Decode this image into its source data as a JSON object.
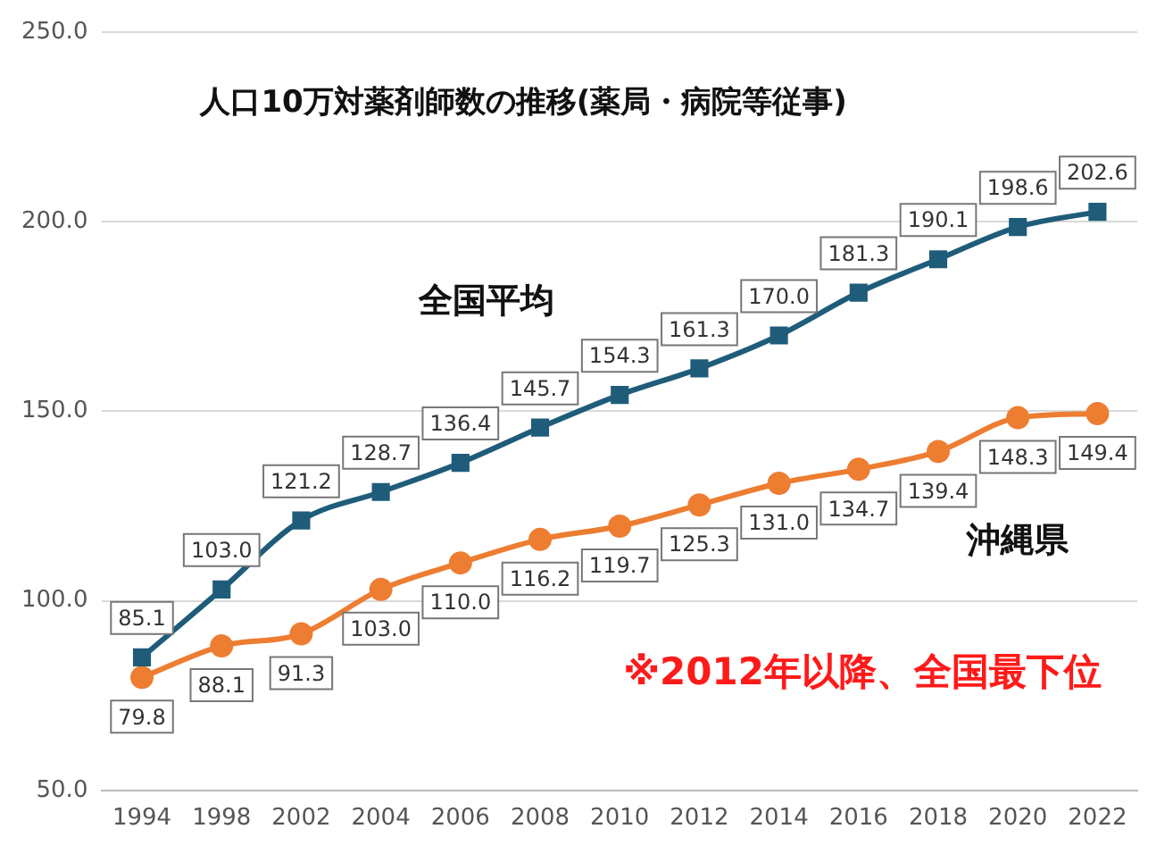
{
  "chart_data": {
    "type": "line",
    "title": "人口10万対薬剤師数の推移(薬局・病院等従事)",
    "categories": [
      "1994",
      "1998",
      "2002",
      "2004",
      "2006",
      "2008",
      "2010",
      "2012",
      "2014",
      "2016",
      "2018",
      "2020",
      "2022"
    ],
    "series": [
      {
        "name": "全国平均",
        "color": "#1f5c7a",
        "marker": "square",
        "values": [
          85.1,
          103.0,
          121.2,
          128.7,
          136.4,
          145.7,
          154.3,
          161.3,
          170.0,
          181.3,
          190.1,
          198.6,
          202.6
        ],
        "value_labels": [
          "85.1",
          "103.0",
          "121.2",
          "128.7",
          "136.4",
          "145.7",
          "154.3",
          "161.3",
          "170.0",
          "181.3",
          "190.1",
          "198.6",
          "202.6"
        ]
      },
      {
        "name": "沖縄県",
        "color": "#ed7d31",
        "marker": "circle",
        "values": [
          79.8,
          88.1,
          91.3,
          103.0,
          110.0,
          116.2,
          119.7,
          125.3,
          131.0,
          134.7,
          139.4,
          148.3,
          149.4
        ],
        "value_labels": [
          "79.8",
          "88.1",
          "91.3",
          "103.0",
          "110.0",
          "116.2",
          "119.7",
          "125.3",
          "131.0",
          "134.7",
          "139.4",
          "148.3",
          "149.4"
        ]
      }
    ],
    "ylim": [
      50,
      250
    ],
    "yticks": [
      {
        "value": 50,
        "label": "50.0"
      },
      {
        "value": 100,
        "label": "100.0"
      },
      {
        "value": 150,
        "label": "150.0"
      },
      {
        "value": 200,
        "label": "200.0"
      },
      {
        "value": 250,
        "label": "250.0"
      }
    ],
    "grid": "y",
    "legend": false,
    "annotations": [
      "※2012年以降、全国最下位"
    ]
  }
}
